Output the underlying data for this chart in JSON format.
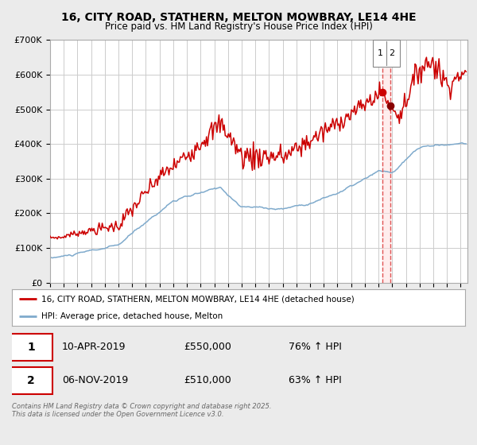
{
  "title": "16, CITY ROAD, STATHERN, MELTON MOWBRAY, LE14 4HE",
  "subtitle": "Price paid vs. HM Land Registry's House Price Index (HPI)",
  "legend_label_1": "16, CITY ROAD, STATHERN, MELTON MOWBRAY, LE14 4HE (detached house)",
  "legend_label_2": "HPI: Average price, detached house, Melton",
  "line1_color": "#cc0000",
  "line2_color": "#7faacc",
  "marker1_color": "#cc0000",
  "marker2_color": "#880000",
  "vline_color": "#dd4444",
  "vline_fill_color": "#ffdddd",
  "annotation_box_color": "#cc0000",
  "background_color": "#ebebeb",
  "plot_bg_color": "#ffffff",
  "grid_color": "#cccccc",
  "footer_text": "Contains HM Land Registry data © Crown copyright and database right 2025.\nThis data is licensed under the Open Government Licence v3.0.",
  "table_rows": [
    {
      "num": "1",
      "date": "10-APR-2019",
      "price": "£550,000",
      "hpi": "76% ↑ HPI"
    },
    {
      "num": "2",
      "date": "06-NOV-2019",
      "price": "£510,000",
      "hpi": "63% ↑ HPI"
    }
  ],
  "sale1_year": 2019.27,
  "sale1_price": 550000,
  "sale2_year": 2019.84,
  "sale2_price": 510000,
  "ylim": [
    0,
    700000
  ],
  "xlim_start": 1995,
  "xlim_end": 2025.5,
  "yticks": [
    0,
    100000,
    200000,
    300000,
    400000,
    500000,
    600000,
    700000
  ],
  "ytick_labels": [
    "£0",
    "£100K",
    "£200K",
    "£300K",
    "£400K",
    "£500K",
    "£600K",
    "£700K"
  ]
}
